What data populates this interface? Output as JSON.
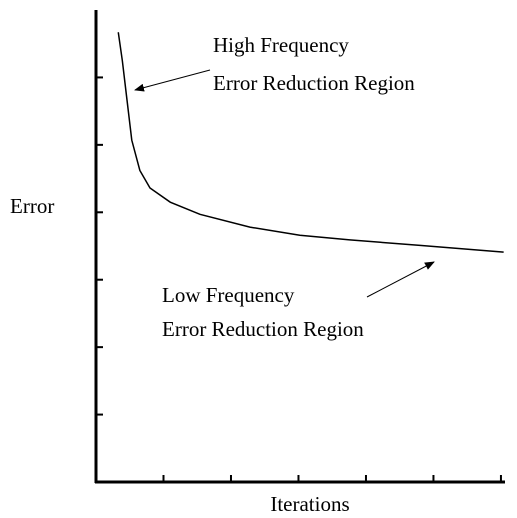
{
  "chart_data": {
    "type": "line",
    "xlabel": "Iterations",
    "ylabel": "Error",
    "annotations": [
      [
        "High Frequency",
        "Error Reduction Region"
      ],
      [
        "Low Frequency",
        "Error Reduction Region"
      ]
    ],
    "x": [
      0.33,
      0.39,
      0.46,
      0.53,
      0.65,
      0.8,
      1.1,
      1.54,
      2.28,
      3.02,
      3.76,
      4.8,
      6.04
    ],
    "series": [
      {
        "color": "#000000",
        "values": [
          6.67,
          6.25,
          5.66,
          5.07,
          4.62,
          4.36,
          4.15,
          3.97,
          3.78,
          3.66,
          3.59,
          3.51,
          3.41
        ]
      }
    ],
    "xlim": [
      0,
      6.06
    ],
    "ylim": [
      0,
      7
    ],
    "xticks": [
      1,
      2,
      3,
      4,
      5,
      6
    ],
    "yticks": [
      1,
      2,
      3,
      4,
      5,
      6
    ]
  }
}
